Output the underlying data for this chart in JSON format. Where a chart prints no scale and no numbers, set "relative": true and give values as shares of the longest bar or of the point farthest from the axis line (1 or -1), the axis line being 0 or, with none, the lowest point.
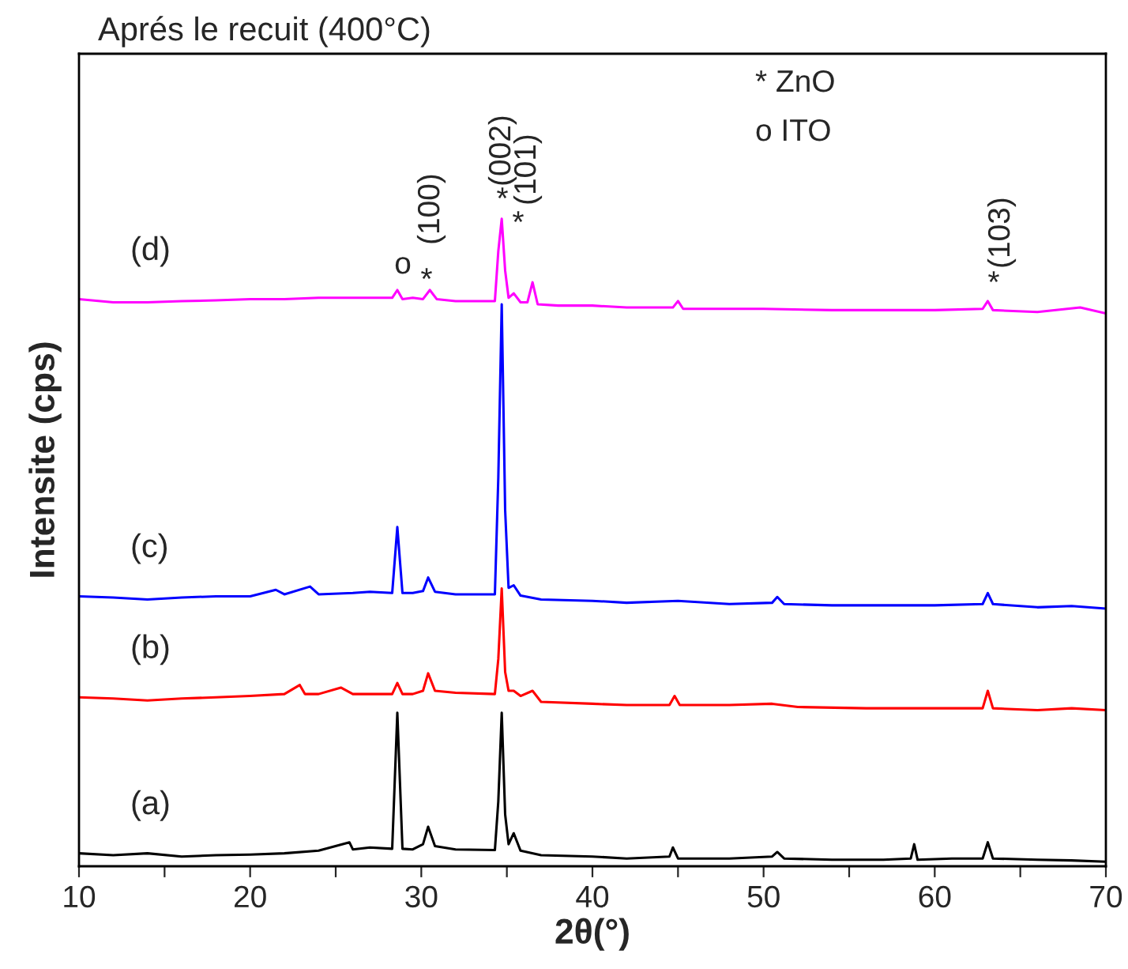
{
  "chart_data": {
    "type": "line",
    "relative": true,
    "title": "Aprés le recuit (400°C)",
    "xlabel": "2θ(°)",
    "ylabel": "Intensite (cps)",
    "xlim": [
      10,
      70
    ],
    "xticks": [
      10,
      {
        "value": 15,
        "label": null
      },
      20,
      {
        "value": 25,
        "label": null
      },
      30,
      {
        "value": 35,
        "label": null
      },
      40,
      {
        "value": 45,
        "label": null
      },
      50,
      {
        "value": 55,
        "label": null
      },
      60,
      {
        "value": 65,
        "label": null
      },
      70
    ],
    "tick_labels": "x",
    "grid": false,
    "legend": false,
    "line_style": "solid",
    "marker": "none",
    "series": [
      {
        "name": "(a)",
        "color": "#000000",
        "x": [
          10,
          12,
          14,
          16,
          18,
          20,
          22,
          24,
          25.8,
          26,
          27,
          28.3,
          28.6,
          28.9,
          29.5,
          30.1,
          30.4,
          30.8,
          32,
          34.3,
          34.5,
          34.7,
          34.9,
          35.1,
          35.4,
          35.8,
          37,
          40,
          42,
          44.5,
          44.7,
          45,
          48,
          50.5,
          50.8,
          51.2,
          54,
          57,
          58.6,
          58.8,
          59,
          61,
          62.8,
          63.1,
          63.4,
          66,
          68,
          70
        ],
        "values": [
          0.02,
          0.017,
          0.02,
          0.015,
          0.017,
          0.018,
          0.02,
          0.024,
          0.037,
          0.026,
          0.029,
          0.027,
          0.237,
          0.027,
          0.026,
          0.034,
          0.061,
          0.031,
          0.026,
          0.025,
          0.1,
          0.237,
          0.08,
          0.034,
          0.051,
          0.024,
          0.017,
          0.015,
          0.012,
          0.015,
          0.029,
          0.012,
          0.012,
          0.015,
          0.022,
          0.012,
          0.01,
          0.01,
          0.012,
          0.034,
          0.01,
          0.012,
          0.012,
          0.037,
          0.012,
          0.01,
          0.009,
          0.007
        ]
      },
      {
        "name": "(b)",
        "color": "#ff0000",
        "x": [
          10,
          12,
          14,
          16,
          18,
          20,
          22,
          22.9,
          23.2,
          24,
          25.3,
          26,
          27,
          28.3,
          28.6,
          28.9,
          29.5,
          30.1,
          30.4,
          30.8,
          32,
          34.3,
          34.5,
          34.7,
          34.9,
          35.1,
          35.4,
          35.8,
          36.5,
          37,
          40,
          42,
          44.5,
          44.8,
          45.1,
          48,
          50.5,
          52,
          56,
          60,
          62.8,
          63.1,
          63.4,
          66,
          68,
          70
        ],
        "values": [
          0.261,
          0.259,
          0.256,
          0.259,
          0.261,
          0.263,
          0.266,
          0.28,
          0.266,
          0.266,
          0.276,
          0.266,
          0.266,
          0.266,
          0.283,
          0.266,
          0.266,
          0.271,
          0.298,
          0.271,
          0.268,
          0.266,
          0.32,
          0.429,
          0.3,
          0.271,
          0.271,
          0.263,
          0.271,
          0.254,
          0.251,
          0.249,
          0.249,
          0.263,
          0.249,
          0.249,
          0.251,
          0.246,
          0.244,
          0.244,
          0.244,
          0.271,
          0.244,
          0.241,
          0.244,
          0.241
        ]
      },
      {
        "name": "(c)",
        "color": "#0000ff",
        "x": [
          10,
          12,
          14,
          16,
          18,
          20,
          21.5,
          22,
          23.5,
          24,
          26,
          27,
          28.3,
          28.6,
          28.9,
          29.5,
          30.1,
          30.4,
          30.8,
          32,
          34.3,
          34.5,
          34.7,
          34.9,
          35.1,
          35.4,
          35.8,
          37,
          40,
          42,
          45,
          48,
          50.5,
          50.8,
          51.2,
          54,
          57,
          60,
          62.8,
          63.1,
          63.4,
          66,
          68,
          70
        ],
        "values": [
          0.417,
          0.415,
          0.412,
          0.415,
          0.417,
          0.417,
          0.427,
          0.42,
          0.432,
          0.42,
          0.422,
          0.424,
          0.422,
          0.524,
          0.422,
          0.422,
          0.425,
          0.446,
          0.424,
          0.42,
          0.42,
          0.6,
          0.868,
          0.55,
          0.43,
          0.434,
          0.418,
          0.412,
          0.41,
          0.407,
          0.41,
          0.405,
          0.407,
          0.416,
          0.405,
          0.403,
          0.403,
          0.403,
          0.405,
          0.422,
          0.405,
          0.4,
          0.402,
          0.398
        ]
      },
      {
        "name": "(d)",
        "color": "#ff00ff",
        "x": [
          10,
          12,
          14,
          16,
          18,
          20,
          22,
          24,
          26,
          28.3,
          28.6,
          28.9,
          29.5,
          30.1,
          30.5,
          30.9,
          32,
          34.3,
          34.5,
          34.7,
          34.9,
          35.1,
          35.4,
          35.8,
          36.2,
          36.5,
          36.8,
          38,
          40,
          42,
          44.7,
          45,
          45.3,
          48,
          50,
          54,
          58,
          60,
          62.8,
          63.1,
          63.4,
          66,
          68.5,
          70
        ],
        "values": [
          0.876,
          0.871,
          0.871,
          0.873,
          0.874,
          0.876,
          0.876,
          0.878,
          0.878,
          0.878,
          0.89,
          0.876,
          0.878,
          0.876,
          0.89,
          0.876,
          0.873,
          0.873,
          0.95,
          1.0,
          0.92,
          0.878,
          0.885,
          0.871,
          0.871,
          0.902,
          0.868,
          0.866,
          0.866,
          0.863,
          0.863,
          0.873,
          0.861,
          0.861,
          0.861,
          0.859,
          0.859,
          0.859,
          0.861,
          0.873,
          0.859,
          0.856,
          0.863,
          0.854
        ]
      }
    ],
    "annotations": [
      "o",
      "*",
      "(100)",
      "*",
      "(002)",
      "*",
      "(101)",
      "*",
      "(103)",
      "* ZnO",
      "o ITO"
    ]
  }
}
